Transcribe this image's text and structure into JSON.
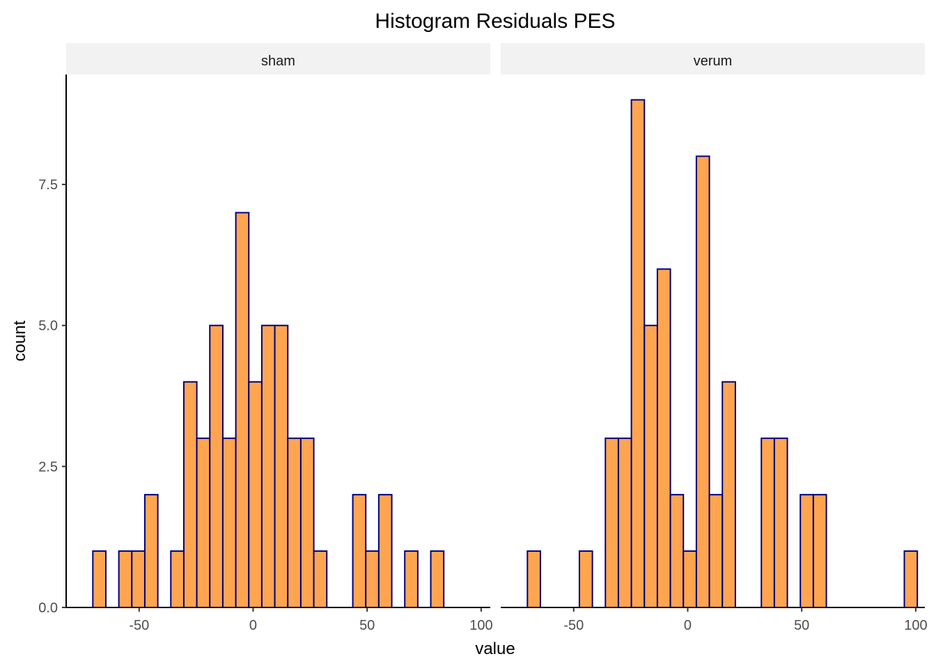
{
  "chart_data": {
    "type": "bar",
    "title": "Histogram Residuals PES",
    "xlabel": "value",
    "ylabel": "count",
    "xlim": [
      -82,
      104
    ],
    "ylim": [
      0,
      9.45
    ],
    "x_ticks": [
      {
        "value": -50,
        "label": "-50"
      },
      {
        "value": 0,
        "label": "0"
      },
      {
        "value": 50,
        "label": "50"
      },
      {
        "value": 100,
        "label": "100"
      }
    ],
    "y_ticks": [
      {
        "value": 0,
        "label": "0.0"
      },
      {
        "value": 2.5,
        "label": "2.5"
      },
      {
        "value": 5,
        "label": "5.0"
      },
      {
        "value": 7.5,
        "label": "7.5"
      }
    ],
    "bin_width": 5.7,
    "bin_start": -70.3,
    "fill_color": "#FFA54F",
    "outline_color": "#000080",
    "strip_color": "#F2F2F2",
    "grid": false,
    "panels": [
      {
        "name": "sham",
        "counts": [
          1,
          0,
          1,
          1,
          2,
          0,
          1,
          4,
          3,
          5,
          3,
          7,
          4,
          5,
          5,
          3,
          3,
          1,
          0,
          0,
          2,
          1,
          2,
          0,
          1,
          0,
          1,
          0,
          0,
          0
        ]
      },
      {
        "name": "verum",
        "counts": [
          1,
          0,
          0,
          0,
          1,
          0,
          3,
          3,
          9,
          5,
          6,
          2,
          1,
          8,
          2,
          4,
          0,
          0,
          3,
          3,
          0,
          2,
          2,
          0,
          0,
          0,
          0,
          0,
          0,
          1
        ]
      }
    ]
  }
}
